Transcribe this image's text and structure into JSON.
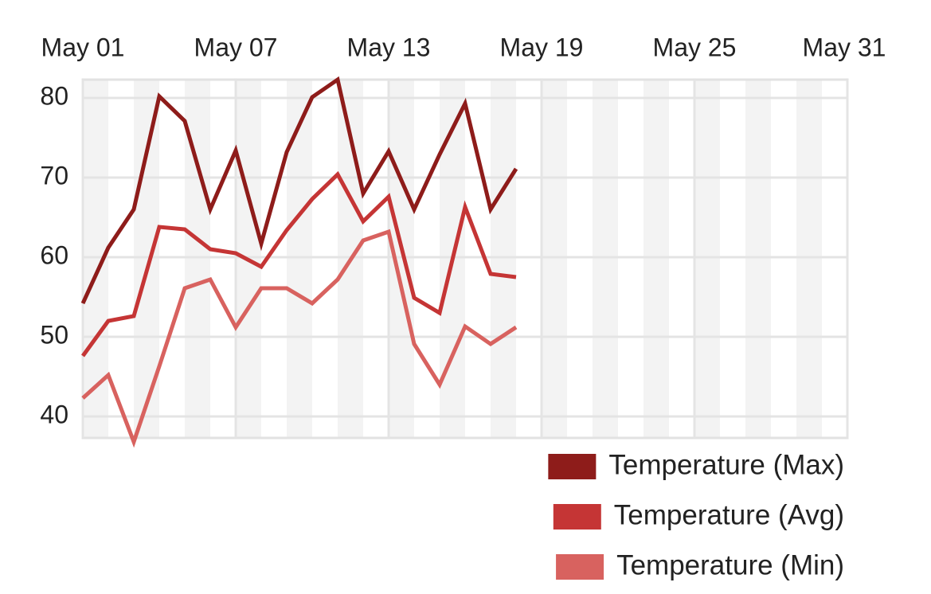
{
  "chart_data": {
    "type": "line",
    "x": [
      "May 01",
      "May 02",
      "May 03",
      "May 04",
      "May 05",
      "May 06",
      "May 07",
      "May 08",
      "May 09",
      "May 10",
      "May 11",
      "May 12",
      "May 13",
      "May 14",
      "May 15",
      "May 16",
      "May 17",
      "May 18"
    ],
    "xlim": [
      "May 01",
      "May 31"
    ],
    "xticks": [
      "May 01",
      "May 07",
      "May 13",
      "May 19",
      "May 25",
      "May 31"
    ],
    "ylim": [
      37.3,
      82.3
    ],
    "yticks": [
      40,
      50,
      60,
      70,
      80
    ],
    "grid": true,
    "legend": "bottom-right",
    "series": [
      {
        "name": "Temperature (Max)",
        "color": "#8e1c1a",
        "values": [
          54.2,
          61.2,
          66.0,
          80.2,
          77.1,
          66.0,
          73.4,
          61.7,
          73.2,
          80.1,
          82.3,
          68.0,
          73.3,
          66.0,
          72.9,
          79.3,
          66.0,
          71.1
        ]
      },
      {
        "name": "Temperature (Avg)",
        "color": "#c53535",
        "values": [
          47.6,
          52.0,
          52.6,
          63.8,
          63.5,
          61.0,
          60.5,
          58.8,
          63.4,
          67.3,
          70.4,
          64.5,
          67.6,
          54.9,
          53.0,
          66.3,
          57.9,
          57.5
        ]
      },
      {
        "name": "Temperature (Min)",
        "color": "#d8625f",
        "values": [
          42.3,
          45.2,
          36.8,
          46.3,
          56.1,
          57.2,
          51.2,
          56.1,
          56.1,
          54.2,
          57.2,
          62.1,
          63.2,
          49.1,
          44.0,
          51.3,
          49.1,
          51.2
        ]
      }
    ]
  }
}
